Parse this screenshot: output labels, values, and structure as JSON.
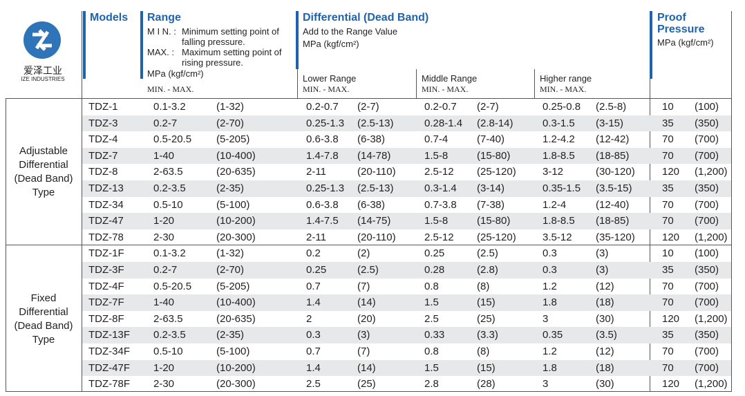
{
  "header": {
    "logo_cn": "爱泽工业",
    "logo_en": "IZE INDUSTRIES",
    "models": "Models",
    "range": {
      "title": "Range",
      "min_label": "M I N. :",
      "min_text": "Minimum setting point of falling pressure.",
      "max_label": "MAX. :",
      "max_text": "Maximum setting point of rising pressure."
    },
    "differential": {
      "title": "Differential  (Dead Band)",
      "note": "Add to the Range Value",
      "lower": "Lower Range",
      "middle": "Middle Range",
      "higher": "Higher range"
    },
    "proof": "Proof Pressure",
    "unit": "MPa (kgf/cm²)",
    "minmax": "MIN. - MAX."
  },
  "groups": [
    {
      "label": "Adjustable Differential (Dead Band) Type",
      "rows": [
        [
          "TDZ-1",
          "0.1-3.2",
          "(1-32)",
          "0.2-0.7",
          "(2-7)",
          "0.2-0.7",
          "(2-7)",
          "0.25-0.8",
          "(2.5-8)",
          "10",
          "(100)"
        ],
        [
          "TDZ-3",
          "0.2-7",
          "(2-70)",
          "0.25-1.3",
          "(2.5-13)",
          "0.28-1.4",
          "(2.8-14)",
          "0.3-1.5",
          "(3-15)",
          "35",
          "(350)"
        ],
        [
          "TDZ-4",
          "0.5-20.5",
          "(5-205)",
          "0.6-3.8",
          "(6-38)",
          "0.7-4",
          "(7-40)",
          "1.2-4.2",
          "(12-42)",
          "70",
          "(700)"
        ],
        [
          "TDZ-7",
          "1-40",
          "(10-400)",
          "1.4-7.8",
          "(14-78)",
          "1.5-8",
          "(15-80)",
          "1.8-8.5",
          "(18-85)",
          "70",
          "(700)"
        ],
        [
          "TDZ-8",
          "2-63.5",
          "(20-635)",
          "2-11",
          "(20-110)",
          "2.5-12",
          "(25-120)",
          "3-12",
          "(30-120)",
          "120",
          "(1,200)"
        ],
        [
          "TDZ-13",
          "0.2-3.5",
          "(2-35)",
          "0.25-1.3",
          "(2.5-13)",
          "0.3-1.4",
          "(3-14)",
          "0.35-1.5",
          "(3.5-15)",
          "35",
          "(350)"
        ],
        [
          "TDZ-34",
          "0.5-10",
          "(5-100)",
          "0.6-3.8",
          "(6-38)",
          "0.7-3.8",
          "(7-38)",
          "1.2-4",
          "(12-40)",
          "70",
          "(700)"
        ],
        [
          "TDZ-47",
          "1-20",
          "(10-200)",
          "1.4-7.5",
          "(14-75)",
          "1.5-8",
          "(15-80)",
          "1.8-8.5",
          "(18-85)",
          "70",
          "(700)"
        ],
        [
          "TDZ-78",
          "2-30",
          "(20-300)",
          "2-11",
          "(20-110)",
          "2.5-12",
          "(25-120)",
          "3.5-12",
          "(35-120)",
          "120",
          "(1,200)"
        ]
      ]
    },
    {
      "label": "Fixed Differential (Dead Band) Type",
      "rows": [
        [
          "TDZ-1F",
          "0.1-3.2",
          "(1-32)",
          "0.2",
          "(2)",
          "0.25",
          "(2.5)",
          "0.3",
          "(3)",
          "10",
          "(100)"
        ],
        [
          "TDZ-3F",
          "0.2-7",
          "(2-70)",
          "0.25",
          "(2.5)",
          "0.28",
          "(2.8)",
          "0.3",
          "(3)",
          "35",
          "(350)"
        ],
        [
          "TDZ-4F",
          "0.5-20.5",
          "(5-205)",
          "0.7",
          "(7)",
          "0.8",
          "(8)",
          "1.2",
          "(12)",
          "70",
          "(700)"
        ],
        [
          "TDZ-7F",
          "1-40",
          "(10-400)",
          "1.4",
          "(14)",
          "1.5",
          "(15)",
          "1.8",
          "(18)",
          "70",
          "(700)"
        ],
        [
          "TDZ-8F",
          "2-63.5",
          "(20-635)",
          "2",
          "(20)",
          "2.5",
          "(25)",
          "3",
          "(30)",
          "120",
          "(1,200)"
        ],
        [
          "TDZ-13F",
          "0.2-3.5",
          "(2-35)",
          "0.3",
          "(3)",
          "0.33",
          "(3.3)",
          "0.35",
          "(3.5)",
          "35",
          "(350)"
        ],
        [
          "TDZ-34F",
          "0.5-10",
          "(5-100)",
          "0.7",
          "(7)",
          "0.8",
          "(8)",
          "1.2",
          "(12)",
          "70",
          "(700)"
        ],
        [
          "TDZ-47F",
          "1-20",
          "(10-200)",
          "1.4",
          "(14)",
          "1.5",
          "(15)",
          "1.8",
          "(18)",
          "70",
          "(700)"
        ],
        [
          "TDZ-78F",
          "2-30",
          "(20-300)",
          "2.5",
          "(25)",
          "2.8",
          "(28)",
          "3",
          "(30)",
          "120",
          "(1,200)"
        ]
      ]
    }
  ]
}
